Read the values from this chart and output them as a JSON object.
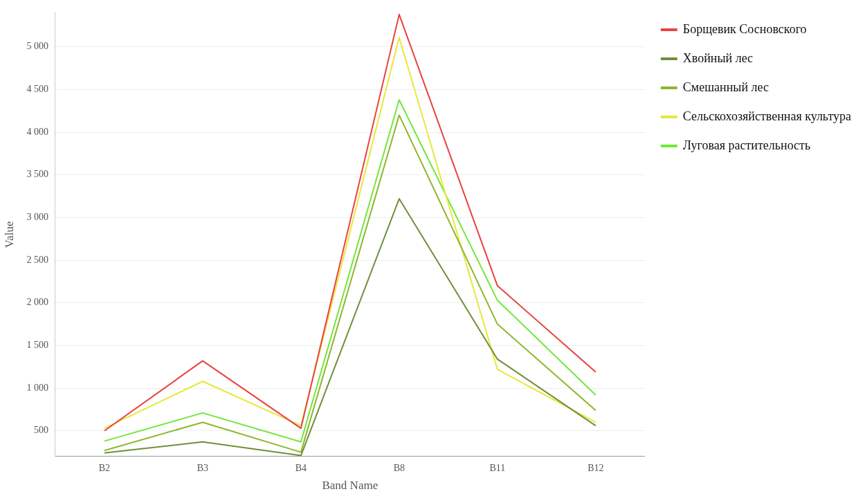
{
  "chart_data": {
    "type": "line",
    "xlabel": "Band Name",
    "ylabel": "Value",
    "categories": [
      "B2",
      "B3",
      "B4",
      "B8",
      "B11",
      "B12"
    ],
    "series": [
      {
        "name": "Борщевик Сосновского",
        "color": "#e8413f",
        "values": [
          500,
          1320,
          530,
          5380,
          2200,
          1190
        ]
      },
      {
        "name": "Хвойный лес",
        "color": "#6f8f3a",
        "values": [
          240,
          370,
          210,
          3220,
          1340,
          560
        ]
      },
      {
        "name": "Смешанный лес",
        "color": "#8db72b",
        "values": [
          270,
          600,
          250,
          4200,
          1750,
          740
        ]
      },
      {
        "name": "Сельскохозяйственная культура",
        "color": "#e8e83a",
        "values": [
          530,
          1080,
          560,
          5110,
          1220,
          600
        ]
      },
      {
        "name": "Луговая растительность",
        "color": "#6fe83a",
        "values": [
          380,
          710,
          370,
          4380,
          2030,
          920
        ]
      }
    ],
    "ylim": [
      200,
      5400
    ],
    "yticks": [
      500,
      {
        "value": 1000,
        "label": "1 000"
      },
      {
        "value": 1500,
        "label": "1 500"
      },
      {
        "value": 2000,
        "label": "2 000"
      },
      {
        "value": 2500,
        "label": "2 500"
      },
      {
        "value": 3000,
        "label": "3 000"
      },
      {
        "value": 3500,
        "label": "3 500"
      },
      {
        "value": 4000,
        "label": "4 000"
      },
      {
        "value": 4500,
        "label": "4 500"
      },
      {
        "value": 5000,
        "label": "5 000"
      }
    ],
    "grid": "y",
    "legend": "right",
    "marker": "none",
    "line_style": "solid"
  }
}
